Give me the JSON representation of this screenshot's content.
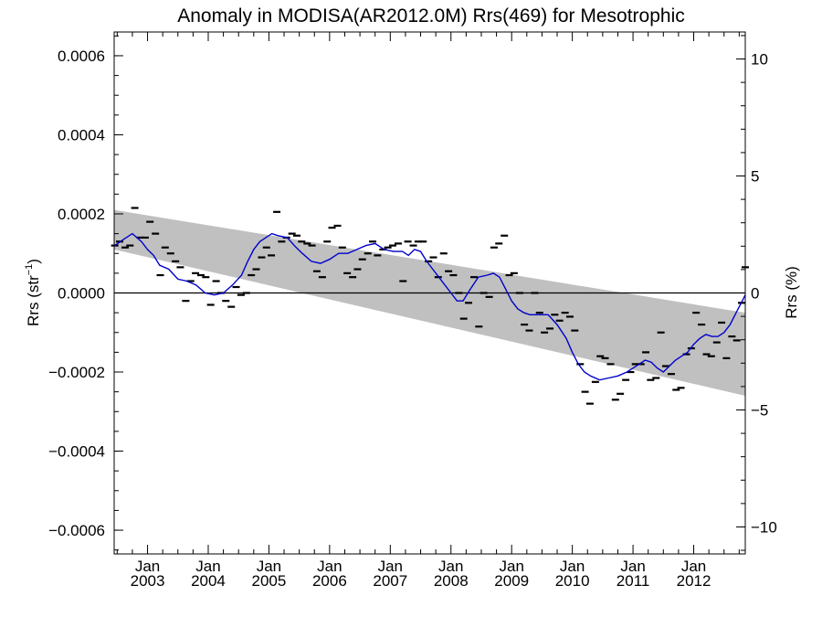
{
  "chart_data": {
    "type": "scatter",
    "title": "Anomaly in MODISA(AR2012.0M) Rrs(469) for Mesotrophic",
    "ylabel_left_base": "Rrs (str",
    "ylabel_left_sup": "−1",
    "ylabel_left_end": ")",
    "ylabel_right": "Rrs (%)",
    "xlim": [
      2002.45,
      2012.85
    ],
    "ylim": [
      -0.00066,
      0.00066
    ],
    "grid": false,
    "legend": "none",
    "x_tick_labels": [
      {
        "month": "Jan",
        "year": "2003",
        "x": 2003.0
      },
      {
        "month": "Jan",
        "year": "2004",
        "x": 2004.0
      },
      {
        "month": "Jan",
        "year": "2005",
        "x": 2005.0
      },
      {
        "month": "Jan",
        "year": "2006",
        "x": 2006.0
      },
      {
        "month": "Jan",
        "year": "2007",
        "x": 2007.0
      },
      {
        "month": "Jan",
        "year": "2008",
        "x": 2008.0
      },
      {
        "month": "Jan",
        "year": "2009",
        "x": 2009.0
      },
      {
        "month": "Jan",
        "year": "2010",
        "x": 2010.0
      },
      {
        "month": "Jan",
        "year": "2011",
        "x": 2011.0
      },
      {
        "month": "Jan",
        "year": "2012",
        "x": 2012.0
      }
    ],
    "y_left_ticks": [
      {
        "value": 0.0006,
        "label": "0.0006"
      },
      {
        "value": 0.0004,
        "label": "0.0004"
      },
      {
        "value": 0.0002,
        "label": "0.0002"
      },
      {
        "value": 0.0,
        "label": "0.0000"
      },
      {
        "value": -0.0002,
        "label": "−0.0002"
      },
      {
        "value": -0.0004,
        "label": "−0.0004"
      },
      {
        "value": -0.0006,
        "label": "−0.0006"
      }
    ],
    "y_right_ticks": [
      {
        "value": 10,
        "label": "10"
      },
      {
        "value": 5,
        "label": "5"
      },
      {
        "value": 0,
        "label": "0"
      },
      {
        "value": -5,
        "label": "−5"
      },
      {
        "value": -10,
        "label": "−10"
      }
    ],
    "right_axis_percent_per_unit": 16900,
    "trend_band": {
      "x": [
        2002.45,
        2012.85
      ],
      "upper": [
        0.00021,
        -5e-05
      ],
      "lower": [
        0.00011,
        -0.00026
      ],
      "color": "#c0c0c0"
    },
    "zero_line": 0.0,
    "series": [
      {
        "kind": "markers",
        "color": "#000000",
        "x": [
          2002.46,
          2002.54,
          2002.63,
          2002.71,
          2002.79,
          2002.88,
          2002.96,
          2003.04,
          2003.13,
          2003.21,
          2003.29,
          2003.38,
          2003.46,
          2003.54,
          2003.63,
          2003.71,
          2003.79,
          2003.88,
          2003.96,
          2004.04,
          2004.13,
          2004.21,
          2004.29,
          2004.38,
          2004.46,
          2004.54,
          2004.63,
          2004.71,
          2004.79,
          2004.88,
          2004.96,
          2005.04,
          2005.13,
          2005.21,
          2005.29,
          2005.38,
          2005.46,
          2005.54,
          2005.63,
          2005.71,
          2005.79,
          2005.88,
          2005.96,
          2006.04,
          2006.13,
          2006.21,
          2006.29,
          2006.38,
          2006.46,
          2006.54,
          2006.63,
          2006.71,
          2006.79,
          2006.88,
          2006.96,
          2007.04,
          2007.13,
          2007.21,
          2007.29,
          2007.38,
          2007.46,
          2007.54,
          2007.63,
          2007.71,
          2007.79,
          2007.88,
          2007.96,
          2008.04,
          2008.13,
          2008.21,
          2008.29,
          2008.38,
          2008.46,
          2008.54,
          2008.63,
          2008.71,
          2008.79,
          2008.88,
          2008.96,
          2009.04,
          2009.13,
          2009.21,
          2009.29,
          2009.38,
          2009.46,
          2009.54,
          2009.63,
          2009.71,
          2009.79,
          2009.88,
          2009.96,
          2010.04,
          2010.13,
          2010.21,
          2010.29,
          2010.38,
          2010.46,
          2010.54,
          2010.63,
          2010.71,
          2010.79,
          2010.88,
          2010.96,
          2011.04,
          2011.13,
          2011.21,
          2011.29,
          2011.38,
          2011.46,
          2011.54,
          2011.63,
          2011.71,
          2011.79,
          2011.88,
          2011.96,
          2012.04,
          2012.13,
          2012.21,
          2012.29,
          2012.38,
          2012.46,
          2012.54,
          2012.63,
          2012.71,
          2012.79,
          2012.85
        ],
        "y": [
          0.00012,
          0.00013,
          0.000115,
          0.00012,
          0.000215,
          0.00014,
          0.00014,
          0.00018,
          0.00015,
          4.5e-05,
          0.000115,
          0.0001,
          8e-05,
          6.5e-05,
          -2e-05,
          3e-05,
          5e-05,
          4.5e-05,
          4e-05,
          -3e-05,
          3e-05,
          0.0,
          -2e-05,
          -3.5e-05,
          1.5e-05,
          -5e-06,
          0.0,
          4.5e-05,
          6e-05,
          9e-05,
          0.000115,
          9.5e-05,
          0.000205,
          0.00013,
          0.00014,
          0.00015,
          0.000145,
          0.00013,
          0.000125,
          0.00012,
          5.5e-05,
          4e-05,
          0.00013,
          0.000165,
          0.00017,
          0.000115,
          5e-05,
          4e-05,
          6e-05,
          8.5e-05,
          0.0001,
          0.00013,
          9.5e-05,
          0.00011,
          0.000115,
          0.00012,
          0.000125,
          3e-05,
          0.00013,
          0.00012,
          0.00013,
          0.00013,
          8e-05,
          9e-05,
          4e-05,
          0.0001,
          5.5e-05,
          4.5e-05,
          0.0,
          -6.5e-05,
          -2.5e-05,
          4e-05,
          -8.5e-05,
          0.0,
          -1e-05,
          0.000115,
          0.000125,
          0.000145,
          4.5e-05,
          5e-05,
          0.0,
          -8e-05,
          -9.5e-05,
          0.0,
          -5e-05,
          -0.0001,
          -9e-05,
          -5.5e-05,
          -7e-05,
          -5e-05,
          -6e-05,
          -9.5e-05,
          -0.00018,
          -0.00025,
          -0.00028,
          -0.000225,
          -0.00016,
          -0.000165,
          -0.00018,
          -0.00027,
          -0.000255,
          -0.00022,
          -0.0002,
          -0.00018,
          -0.00018,
          -0.00015,
          -0.00022,
          -0.000215,
          -0.0001,
          -0.000185,
          -0.000205,
          -0.000245,
          -0.00024,
          -0.000155,
          -0.00014,
          -5e-05,
          -8e-05,
          -0.000155,
          -0.00016,
          -0.000125,
          -7.5e-05,
          -0.000165,
          -0.00011,
          -0.00012,
          -2.5e-05,
          6.5e-05
        ]
      },
      {
        "kind": "line",
        "color": "#0000cc",
        "x": [
          2002.46,
          2002.6,
          2002.75,
          2002.9,
          2003.0,
          2003.1,
          2003.2,
          2003.35,
          2003.5,
          2003.65,
          2003.8,
          2003.95,
          2004.1,
          2004.25,
          2004.4,
          2004.55,
          2004.65,
          2004.75,
          2004.85,
          2004.95,
          2005.05,
          2005.15,
          2005.3,
          2005.45,
          2005.55,
          2005.7,
          2005.85,
          2006.0,
          2006.15,
          2006.3,
          2006.45,
          2006.6,
          2006.75,
          2006.9,
          2007.05,
          2007.2,
          2007.3,
          2007.4,
          2007.5,
          2007.6,
          2007.7,
          2007.8,
          2007.9,
          2008.0,
          2008.1,
          2008.2,
          2008.3,
          2008.45,
          2008.6,
          2008.7,
          2008.8,
          2008.9,
          2009.0,
          2009.1,
          2009.2,
          2009.3,
          2009.45,
          2009.6,
          2009.75,
          2009.9,
          2010.0,
          2010.1,
          2010.2,
          2010.3,
          2010.45,
          2010.6,
          2010.75,
          2010.9,
          2011.0,
          2011.1,
          2011.2,
          2011.3,
          2011.4,
          2011.5,
          2011.6,
          2011.7,
          2011.8,
          2011.9,
          2012.0,
          2012.1,
          2012.2,
          2012.3,
          2012.4,
          2012.5,
          2012.6,
          2012.7,
          2012.8,
          2012.85
        ],
        "y": [
          0.00012,
          0.000135,
          0.00015,
          0.00013,
          0.00011,
          9.5e-05,
          7e-05,
          6e-05,
          3.5e-05,
          3e-05,
          2e-05,
          0.0,
          -5e-06,
          0.0,
          2e-05,
          4.5e-05,
          8e-05,
          0.00011,
          0.00013,
          0.00014,
          0.00015,
          0.000145,
          0.00014,
          0.000115,
          0.0001,
          8e-05,
          7.5e-05,
          8.5e-05,
          0.0001,
          0.0001,
          0.00011,
          0.00012,
          0.000125,
          0.00011,
          0.000105,
          0.000105,
          9.5e-05,
          0.00011,
          0.000105,
          8e-05,
          6e-05,
          4e-05,
          2e-05,
          0.0,
          -2e-05,
          -2e-05,
          5e-06,
          4e-05,
          4.5e-05,
          5e-05,
          4e-05,
          1e-05,
          -2e-05,
          -4e-05,
          -5e-05,
          -5.5e-05,
          -5.5e-05,
          -5.5e-05,
          -8e-05,
          -0.000115,
          -0.00015,
          -0.00018,
          -0.0002,
          -0.00021,
          -0.00022,
          -0.000215,
          -0.00021,
          -0.0002,
          -0.00019,
          -0.00018,
          -0.00017,
          -0.000175,
          -0.00019,
          -0.0002,
          -0.000185,
          -0.00017,
          -0.00016,
          -0.00015,
          -0.00013,
          -0.000115,
          -0.000105,
          -0.00011,
          -0.00011,
          -0.0001,
          -8e-05,
          -5e-05,
          -2e-05,
          -5e-06
        ]
      }
    ]
  }
}
